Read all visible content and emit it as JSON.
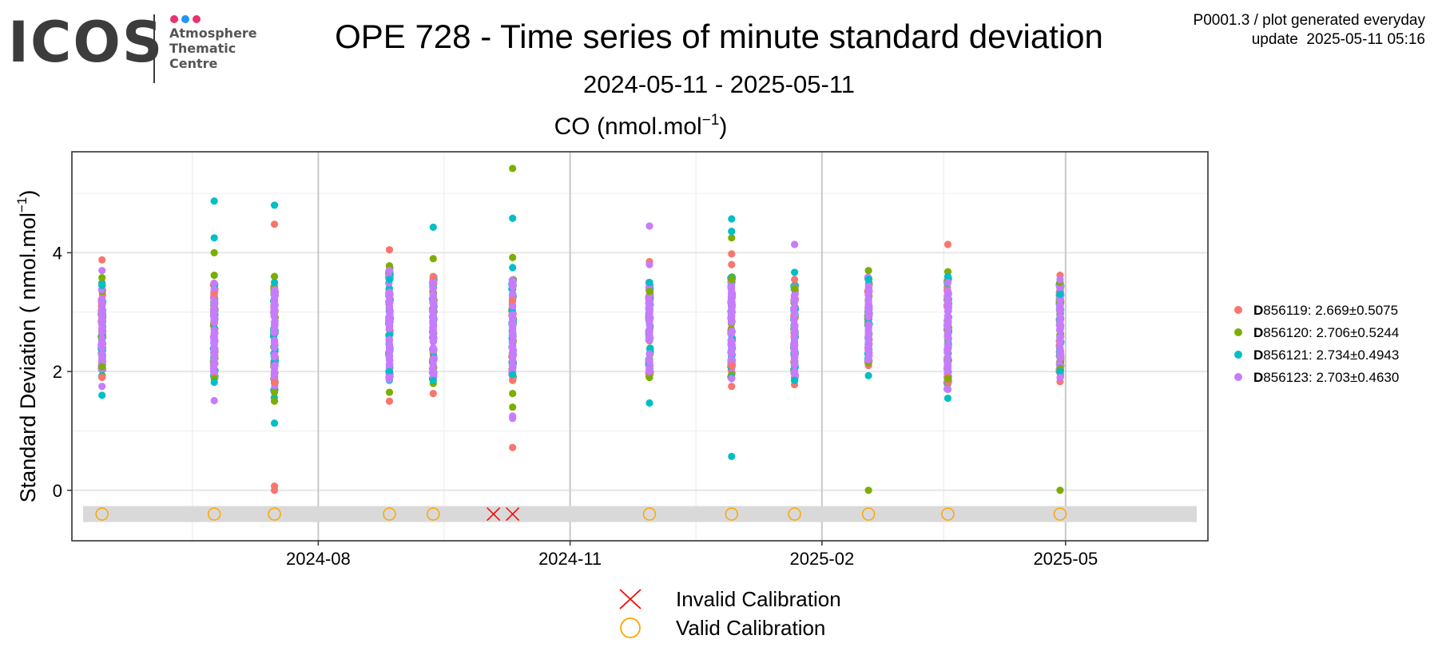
{
  "logo": {
    "text": "ICOS",
    "subtitle_lines": [
      "Atmosphere",
      "Thematic",
      "Centre"
    ],
    "dot_colors": [
      "#e8336d",
      "#2196f3",
      "#e8336d"
    ]
  },
  "header": {
    "title": "OPE 728 - Time series of minute standard deviation",
    "subtitle": "2024-05-11 - 2025-05-11",
    "meta_line1": "P0001.3 / plot generated everyday",
    "meta_line2": "update  2025-05-11 05:16"
  },
  "chart_data": {
    "type": "scatter",
    "title_main": "CO (nmol.mol",
    "title_sup": "−1",
    "title_end": ")",
    "ylabel_main": "Standard Deviation ( nmol.mol",
    "ylabel_sup": "−1",
    "ylabel_end": ")",
    "xlim": [
      "2024-05-11",
      "2025-05-11"
    ],
    "ylim": [
      -0.85,
      5.7
    ],
    "x_ticks": [
      {
        "date": "2024-08-01",
        "label": "2024-08"
      },
      {
        "date": "2024-11-01",
        "label": "2024-11"
      },
      {
        "date": "2025-02-01",
        "label": "2025-02"
      },
      {
        "date": "2025-05-01",
        "label": "2025-05"
      }
    ],
    "y_ticks": [
      0,
      2,
      4
    ],
    "grid": true,
    "legend_position": "right",
    "colors": {
      "D856119": "#f8766d",
      "D856120": "#7cae00",
      "D856121": "#00bfc4",
      "D856123": "#c77cff",
      "invalid": "#ff0000",
      "valid": "#ffa500",
      "panel_border": "#333333",
      "band": "#d9d9d9"
    },
    "series": [
      {
        "name": "D856119",
        "stats": "2.669±0.5075",
        "color": "#f8766d",
        "extremes": [
          {
            "x": "2024-05-14",
            "y": 3.88
          },
          {
            "x": "2024-05-14",
            "y": 1.9
          },
          {
            "x": "2024-06-24",
            "y": 3.3
          },
          {
            "x": "2024-06-24",
            "y": 1.9
          },
          {
            "x": "2024-07-16",
            "y": 4.48
          },
          {
            "x": "2024-07-16",
            "y": 1.82
          },
          {
            "x": "2024-07-16",
            "y": 0.07
          },
          {
            "x": "2024-07-16",
            "y": 0.0
          },
          {
            "x": "2024-08-27",
            "y": 4.05
          },
          {
            "x": "2024-08-27",
            "y": 1.5
          },
          {
            "x": "2024-09-12",
            "y": 3.6
          },
          {
            "x": "2024-09-12",
            "y": 1.63
          },
          {
            "x": "2024-10-11",
            "y": 3.2
          },
          {
            "x": "2024-10-11",
            "y": 1.85
          },
          {
            "x": "2024-10-11",
            "y": 0.72
          },
          {
            "x": "2024-11-30",
            "y": 3.85
          },
          {
            "x": "2024-11-30",
            "y": 1.95
          },
          {
            "x": "2024-12-30",
            "y": 3.98
          },
          {
            "x": "2024-12-30",
            "y": 3.8
          },
          {
            "x": "2024-12-30",
            "y": 2.1
          },
          {
            "x": "2024-12-30",
            "y": 1.75
          },
          {
            "x": "2025-01-22",
            "y": 3.55
          },
          {
            "x": "2025-01-22",
            "y": 1.78
          },
          {
            "x": "2025-02-18",
            "y": 3.4
          },
          {
            "x": "2025-02-18",
            "y": 2.1
          },
          {
            "x": "2025-03-19",
            "y": 4.14
          },
          {
            "x": "2025-03-19",
            "y": 1.9
          },
          {
            "x": "2025-03-19",
            "y": 1.82
          },
          {
            "x": "2025-04-29",
            "y": 3.62
          },
          {
            "x": "2025-04-29",
            "y": 1.83
          }
        ]
      },
      {
        "name": "D856120",
        "stats": "2.706±0.5244",
        "color": "#7cae00",
        "extremes": [
          {
            "x": "2024-05-14",
            "y": 3.58
          },
          {
            "x": "2024-05-14",
            "y": 2.08
          },
          {
            "x": "2024-06-24",
            "y": 4.0
          },
          {
            "x": "2024-06-24",
            "y": 3.62
          },
          {
            "x": "2024-06-24",
            "y": 1.88
          },
          {
            "x": "2024-07-16",
            "y": 3.6
          },
          {
            "x": "2024-07-16",
            "y": 1.65
          },
          {
            "x": "2024-07-16",
            "y": 1.5
          },
          {
            "x": "2024-08-27",
            "y": 3.78
          },
          {
            "x": "2024-08-27",
            "y": 1.65
          },
          {
            "x": "2024-09-12",
            "y": 3.9
          },
          {
            "x": "2024-09-12",
            "y": 1.8
          },
          {
            "x": "2024-10-11",
            "y": 5.42
          },
          {
            "x": "2024-10-11",
            "y": 3.92
          },
          {
            "x": "2024-10-11",
            "y": 1.63
          },
          {
            "x": "2024-10-11",
            "y": 1.4
          },
          {
            "x": "2024-11-30",
            "y": 3.35
          },
          {
            "x": "2024-11-30",
            "y": 1.9
          },
          {
            "x": "2024-12-30",
            "y": 4.25
          },
          {
            "x": "2024-12-30",
            "y": 3.55
          },
          {
            "x": "2024-12-30",
            "y": 1.95
          },
          {
            "x": "2025-01-22",
            "y": 3.4
          },
          {
            "x": "2025-01-22",
            "y": 1.85
          },
          {
            "x": "2025-02-18",
            "y": 3.7
          },
          {
            "x": "2025-02-18",
            "y": 2.15
          },
          {
            "x": "2025-02-18",
            "y": 0.0
          },
          {
            "x": "2025-03-19",
            "y": 3.68
          },
          {
            "x": "2025-03-19",
            "y": 1.88
          },
          {
            "x": "2025-04-29",
            "y": 3.5
          },
          {
            "x": "2025-04-29",
            "y": 2.05
          },
          {
            "x": "2025-04-29",
            "y": 0.0
          }
        ]
      },
      {
        "name": "D856121",
        "stats": "2.734±0.4943",
        "color": "#00bfc4",
        "extremes": [
          {
            "x": "2024-05-14",
            "y": 3.45
          },
          {
            "x": "2024-05-14",
            "y": 1.6
          },
          {
            "x": "2024-06-24",
            "y": 4.87
          },
          {
            "x": "2024-06-24",
            "y": 4.25
          },
          {
            "x": "2024-06-24",
            "y": 1.82
          },
          {
            "x": "2024-07-16",
            "y": 4.8
          },
          {
            "x": "2024-07-16",
            "y": 3.5
          },
          {
            "x": "2024-07-16",
            "y": 1.13
          },
          {
            "x": "2024-08-27",
            "y": 3.55
          },
          {
            "x": "2024-08-27",
            "y": 2.0
          },
          {
            "x": "2024-09-12",
            "y": 4.43
          },
          {
            "x": "2024-09-12",
            "y": 1.85
          },
          {
            "x": "2024-10-11",
            "y": 4.58
          },
          {
            "x": "2024-10-11",
            "y": 3.75
          },
          {
            "x": "2024-10-11",
            "y": 1.95
          },
          {
            "x": "2024-11-30",
            "y": 3.5
          },
          {
            "x": "2024-11-30",
            "y": 1.47
          },
          {
            "x": "2024-12-30",
            "y": 4.57
          },
          {
            "x": "2024-12-30",
            "y": 4.36
          },
          {
            "x": "2024-12-30",
            "y": 1.9
          },
          {
            "x": "2024-12-30",
            "y": 0.57
          },
          {
            "x": "2025-01-22",
            "y": 3.67
          },
          {
            "x": "2025-01-22",
            "y": 1.85
          },
          {
            "x": "2025-02-18",
            "y": 3.55
          },
          {
            "x": "2025-02-18",
            "y": 1.93
          },
          {
            "x": "2025-03-19",
            "y": 3.6
          },
          {
            "x": "2025-03-19",
            "y": 1.55
          },
          {
            "x": "2025-04-29",
            "y": 3.3
          },
          {
            "x": "2025-04-29",
            "y": 2.0
          }
        ]
      },
      {
        "name": "D856123",
        "stats": "2.703±0.4630",
        "color": "#c77cff",
        "extremes": [
          {
            "x": "2024-05-14",
            "y": 3.7
          },
          {
            "x": "2024-05-14",
            "y": 1.75
          },
          {
            "x": "2024-06-24",
            "y": 3.2
          },
          {
            "x": "2024-06-24",
            "y": 1.51
          },
          {
            "x": "2024-07-16",
            "y": 3.2
          },
          {
            "x": "2024-07-16",
            "y": 2.0
          },
          {
            "x": "2024-08-27",
            "y": 3.7
          },
          {
            "x": "2024-08-27",
            "y": 1.9
          },
          {
            "x": "2024-09-12",
            "y": 3.4
          },
          {
            "x": "2024-09-12",
            "y": 2.0
          },
          {
            "x": "2024-10-11",
            "y": 3.5
          },
          {
            "x": "2024-10-11",
            "y": 1.25
          },
          {
            "x": "2024-10-11",
            "y": 1.21
          },
          {
            "x": "2024-11-30",
            "y": 4.45
          },
          {
            "x": "2024-11-30",
            "y": 3.8
          },
          {
            "x": "2024-11-30",
            "y": 2.0
          },
          {
            "x": "2024-12-30",
            "y": 3.25
          },
          {
            "x": "2024-12-30",
            "y": 1.88
          },
          {
            "x": "2025-01-22",
            "y": 4.14
          },
          {
            "x": "2025-01-22",
            "y": 2.0
          },
          {
            "x": "2025-02-18",
            "y": 3.4
          },
          {
            "x": "2025-02-18",
            "y": 2.2
          },
          {
            "x": "2025-03-19",
            "y": 3.5
          },
          {
            "x": "2025-03-19",
            "y": 1.7
          },
          {
            "x": "2025-04-29",
            "y": 3.55
          },
          {
            "x": "2025-04-29",
            "y": 1.9
          }
        ]
      }
    ],
    "cluster_ranges": [
      {
        "x": "2024-05-14",
        "low": 1.9,
        "high": 3.5
      },
      {
        "x": "2024-06-24",
        "low": 1.85,
        "high": 3.5
      },
      {
        "x": "2024-07-16",
        "low": 1.55,
        "high": 3.5
      },
      {
        "x": "2024-08-27",
        "low": 1.85,
        "high": 3.8
      },
      {
        "x": "2024-09-12",
        "low": 1.85,
        "high": 3.6
      },
      {
        "x": "2024-10-11",
        "low": 1.85,
        "high": 3.6
      },
      {
        "x": "2024-11-30",
        "low": 1.9,
        "high": 3.5
      },
      {
        "x": "2024-12-30",
        "low": 1.9,
        "high": 3.6
      },
      {
        "x": "2025-01-22",
        "low": 1.85,
        "high": 3.5
      },
      {
        "x": "2025-02-18",
        "low": 2.15,
        "high": 3.6
      },
      {
        "x": "2025-03-19",
        "low": 1.7,
        "high": 3.6
      },
      {
        "x": "2025-04-29",
        "low": 1.9,
        "high": 3.5
      }
    ],
    "calibrations": [
      {
        "x": "2024-05-14",
        "status": "valid"
      },
      {
        "x": "2024-06-24",
        "status": "valid"
      },
      {
        "x": "2024-07-16",
        "status": "valid"
      },
      {
        "x": "2024-08-27",
        "status": "valid"
      },
      {
        "x": "2024-09-12",
        "status": "valid"
      },
      {
        "x": "2024-10-04",
        "status": "invalid"
      },
      {
        "x": "2024-10-11",
        "status": "invalid"
      },
      {
        "x": "2024-11-30",
        "status": "valid"
      },
      {
        "x": "2024-12-30",
        "status": "valid"
      },
      {
        "x": "2025-01-22",
        "status": "valid"
      },
      {
        "x": "2025-02-18",
        "status": "valid"
      },
      {
        "x": "2025-03-19",
        "status": "valid"
      },
      {
        "x": "2025-04-29",
        "status": "valid"
      }
    ],
    "calibration_legend": [
      {
        "key": "invalid",
        "label": "Invalid Calibration"
      },
      {
        "key": "valid",
        "label": "Valid Calibration"
      }
    ]
  }
}
